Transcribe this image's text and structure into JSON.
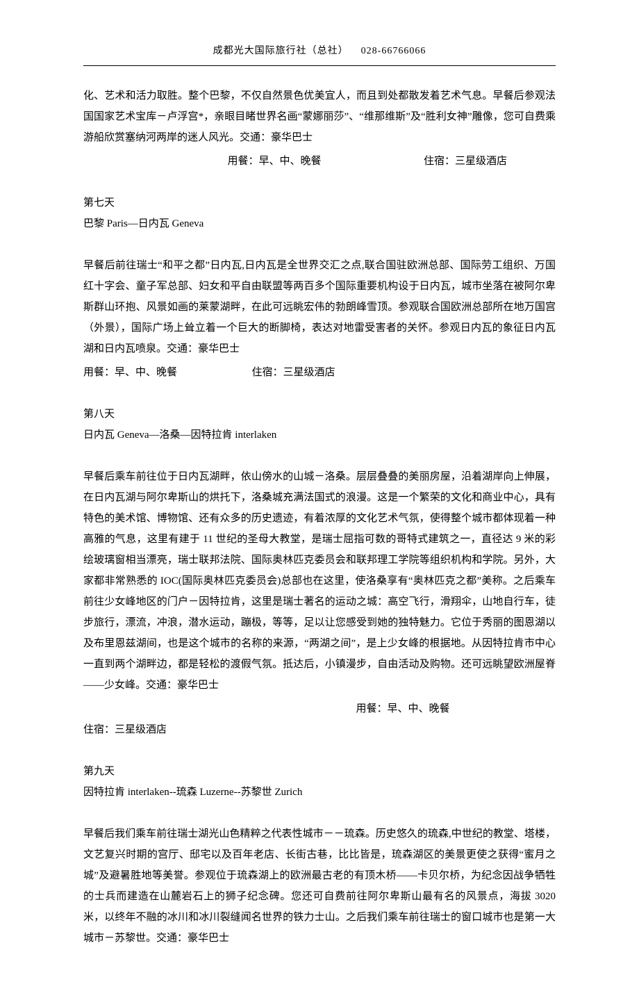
{
  "header": {
    "company": "成都光大国际旅行社（总社）",
    "phone": "028-66766066"
  },
  "day6_tail": {
    "body": "化、艺术和活力取胜。整个巴黎，不仅自然景色优美宜人，而且到处都散发着艺术气息。早餐后参观法国国家艺术宝库－卢浮宫*，亲眼目睹世界名画&#8220;蒙娜丽莎&#8221;、&#8220;维那维斯&#8221;及&#8220;胜利女神&#8221;雕像，您可自费乘游船欣赏塞纳河两岸的迷人风光。交通：豪华巴士",
    "meal": "用餐：早、中、晚餐",
    "hotel": "住宿：三星级酒店"
  },
  "day7": {
    "label": "第七天",
    "route": "巴黎  Paris&#8212;日内瓦 Geneva",
    "body": "早餐后前往瑞士&#8220;和平之都&#8221;日内瓦,日内瓦是全世界交汇之点,联合国驻欧洲总部、国际劳工组织、万国红十字会、童子军总部、妇女和平自由联盟等两百多个国际重要机构设于日内瓦，城市坐落在被阿尔卑斯群山环抱、风景如画的莱蒙湖畔，在此可远眺宏伟的勃朗峰雪顶。参观联合国欧洲总部所在地万国宫（外景），国际广场上耸立着一个巨大的断脚椅，表达对地雷受害者的关怀。参观日内瓦的象征日内瓦湖和日内瓦喷泉。交通：豪华巴士",
    "meal": "用餐：早、中、晚餐",
    "hotel": "住宿：三星级酒店"
  },
  "day8": {
    "label": "第八天",
    "route": "日内瓦 Geneva&#8212;洛桑&#8212;因特拉肯 interlaken",
    "body": "早餐后乘车前往位于日内瓦湖畔，依山傍水的山城－洛桑。层层叠叠的美丽房屋，沿着湖岸向上伸展，在日内瓦湖与阿尔卑斯山的烘托下，洛桑城充满法国式的浪漫。这是一个繁荣的文化和商业中心，具有特色的美术馆、博物馆、还有众多的历史遗迹，有着浓厚的文化艺术气氛，使得整个城市都体现着一种高雅的气息，这里有建于 11 世纪的圣母大教堂，是瑞士屈指可数的哥特式建筑之一，直径达 9 米的彩绘玻璃窗相当漂亮，瑞士联邦法院、国际奥林匹克委员会和联邦理工学院等组织机构和学院。另外，大家都非常熟悉的 IOC(国际奥林匹克委员会)总部也在这里，使洛桑享有&#8220;奥林匹克之都&#8221;美称。之后乘车前往少女峰地区的门户－因特拉肯，这里是瑞士著名的运动之城：高空飞行，滑翔伞，山地自行车，徒步旅行，漂流，冲浪，潜水运动，蹦极，等等，足以让您感受到她的独特魅力。它位于秀丽的图恩湖以及布里恩兹湖间，也是这个城市的名称的来源，&#8220;两湖之间&#8221;，是上少女峰的根据地。从因特拉肯市中心一直到两个湖畔边，都是轻松的渡假气氛。抵达后，小镇漫步，自由活动及购物。还可远眺望欧洲屋脊&#8212;&#8212;少女峰。交通：豪华巴士",
    "meal": "用餐：早、中、晚餐",
    "hotel": "住宿：三星级酒店"
  },
  "day9": {
    "label": "第九天",
    "route": "因特拉肯 interlaken--琉森 Luzerne--苏黎世 Zurich",
    "body": "早餐后我们乘车前往瑞士湖光山色精粹之代表性城市－－琉森。历史悠久的琉森,中世纪的教堂、塔楼，文艺复兴时期的宫厅、邸宅以及百年老店、长街古巷，比比皆是，琉森湖区的美景更使之获得&#8220;蜜月之城&#8221;及避暑胜地等美誉。参观位于琉森湖上的欧洲最古老的有顶木桥&#8212;&#8212;卡贝尔桥，为纪念因战争牺牲的士兵而建造在山麓岩石上的狮子纪念碑。您还可自费前往阿尔卑斯山最有名的风景点，海拔 3020 米，以终年不融的冰川和冰川裂缝闻名世界的铁力士山。之后我们乘车前往瑞士的窗口城市也是第一大城市－苏黎世。交通：豪华巴士"
  }
}
